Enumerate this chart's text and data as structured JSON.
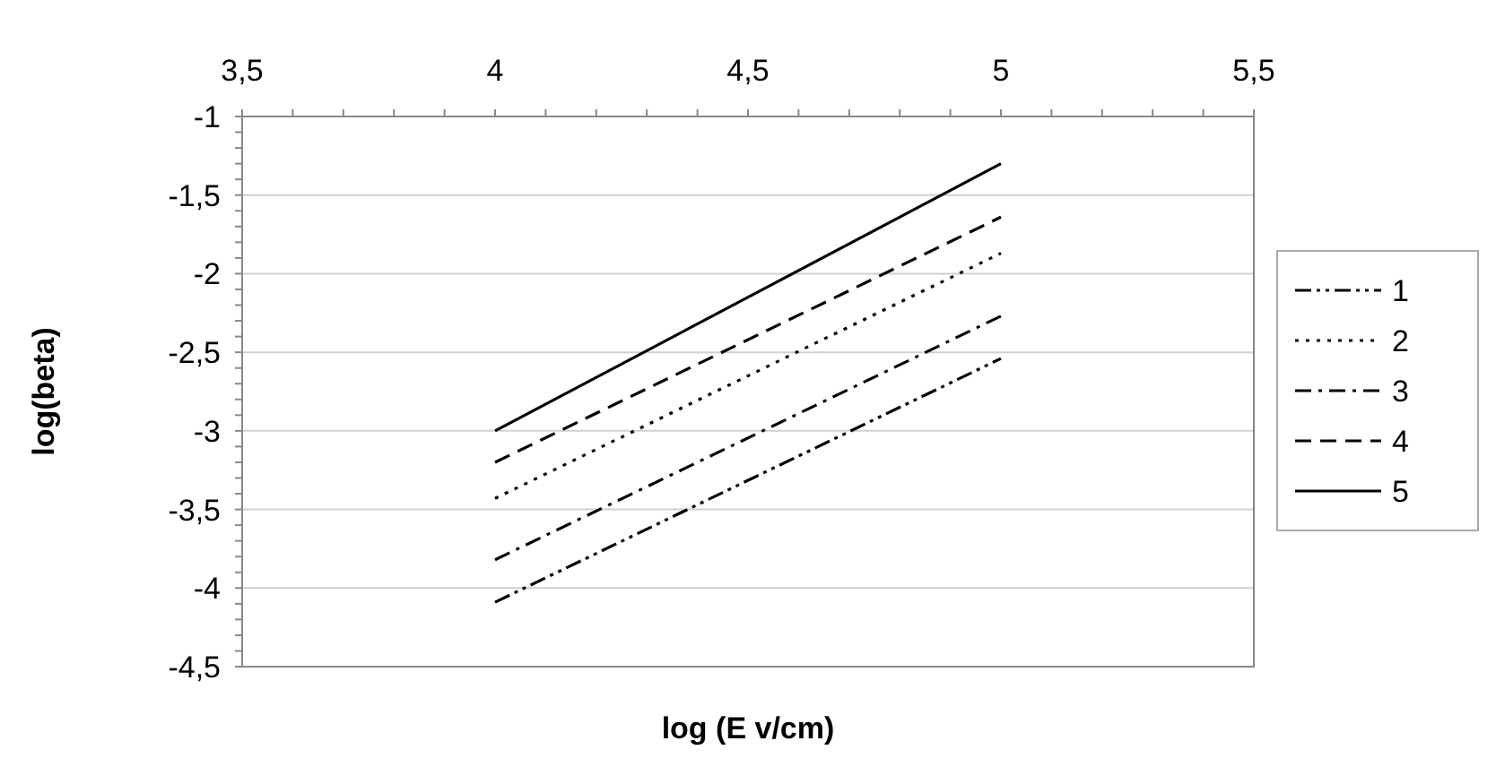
{
  "chart_data": {
    "type": "line",
    "xlabel": "log (E v/cm)",
    "ylabel": "log(beta)",
    "x": [
      4,
      5
    ],
    "series": [
      {
        "name": "1",
        "color": "#000000",
        "values": [
          -4.09,
          -2.54
        ],
        "line_style": "dashdotdot"
      },
      {
        "name": "2",
        "color": "#000000",
        "values": [
          -3.43,
          -1.87
        ],
        "line_style": "dotted"
      },
      {
        "name": "3",
        "color": "#000000",
        "values": [
          -3.82,
          -2.27
        ],
        "line_style": "dashdot"
      },
      {
        "name": "4",
        "color": "#000000",
        "values": [
          -3.2,
          -1.64
        ],
        "line_style": "dashed"
      },
      {
        "name": "5",
        "color": "#000000",
        "values": [
          -3.0,
          -1.3
        ],
        "line_style": "solid"
      }
    ],
    "xlim": [
      3.5,
      5.5
    ],
    "ylim": [
      -4.5,
      -1
    ],
    "xticks": [
      {
        "value": 3.5,
        "label": "3,5"
      },
      {
        "value": 3.6,
        "label": null
      },
      {
        "value": 3.7,
        "label": null
      },
      {
        "value": 3.8,
        "label": null
      },
      {
        "value": 3.9,
        "label": null
      },
      4,
      {
        "value": 4.1,
        "label": null
      },
      {
        "value": 4.2,
        "label": null
      },
      {
        "value": 4.3,
        "label": null
      },
      {
        "value": 4.4,
        "label": null
      },
      {
        "value": 4.5,
        "label": "4,5"
      },
      {
        "value": 4.6,
        "label": null
      },
      {
        "value": 4.7,
        "label": null
      },
      {
        "value": 4.8,
        "label": null
      },
      {
        "value": 4.9,
        "label": null
      },
      5,
      {
        "value": 5.1,
        "label": null
      },
      {
        "value": 5.2,
        "label": null
      },
      {
        "value": 5.3,
        "label": null
      },
      {
        "value": 5.4,
        "label": null
      },
      {
        "value": 5.5,
        "label": "5,5"
      }
    ],
    "yticks": [
      {
        "value": -4.5,
        "label": "-4,5"
      },
      {
        "value": -4.4,
        "label": null
      },
      {
        "value": -4.3,
        "label": null
      },
      {
        "value": -4.2,
        "label": null
      },
      {
        "value": -4.1,
        "label": null
      },
      -4,
      {
        "value": -3.9,
        "label": null
      },
      {
        "value": -3.8,
        "label": null
      },
      {
        "value": -3.7,
        "label": null
      },
      {
        "value": -3.6,
        "label": null
      },
      {
        "value": -3.5,
        "label": "-3,5"
      },
      {
        "value": -3.4,
        "label": null
      },
      {
        "value": -3.3,
        "label": null
      },
      {
        "value": -3.2,
        "label": null
      },
      {
        "value": -3.1,
        "label": null
      },
      -3,
      {
        "value": -2.9,
        "label": null
      },
      {
        "value": -2.8,
        "label": null
      },
      {
        "value": -2.7,
        "label": null
      },
      {
        "value": -2.6,
        "label": null
      },
      {
        "value": -2.5,
        "label": "-2,5"
      },
      {
        "value": -2.4,
        "label": null
      },
      {
        "value": -2.3,
        "label": null
      },
      {
        "value": -2.2,
        "label": null
      },
      {
        "value": -2.1,
        "label": null
      },
      -2,
      {
        "value": -1.9,
        "label": null
      },
      {
        "value": -1.8,
        "label": null
      },
      {
        "value": -1.7,
        "label": null
      },
      {
        "value": -1.6,
        "label": null
      },
      {
        "value": -1.5,
        "label": "-1,5"
      },
      {
        "value": -1.4,
        "label": null
      },
      {
        "value": -1.3,
        "label": null
      },
      {
        "value": -1.2,
        "label": null
      },
      {
        "value": -1.1,
        "label": null
      },
      -1
    ],
    "grid": "y",
    "legend": "right"
  }
}
